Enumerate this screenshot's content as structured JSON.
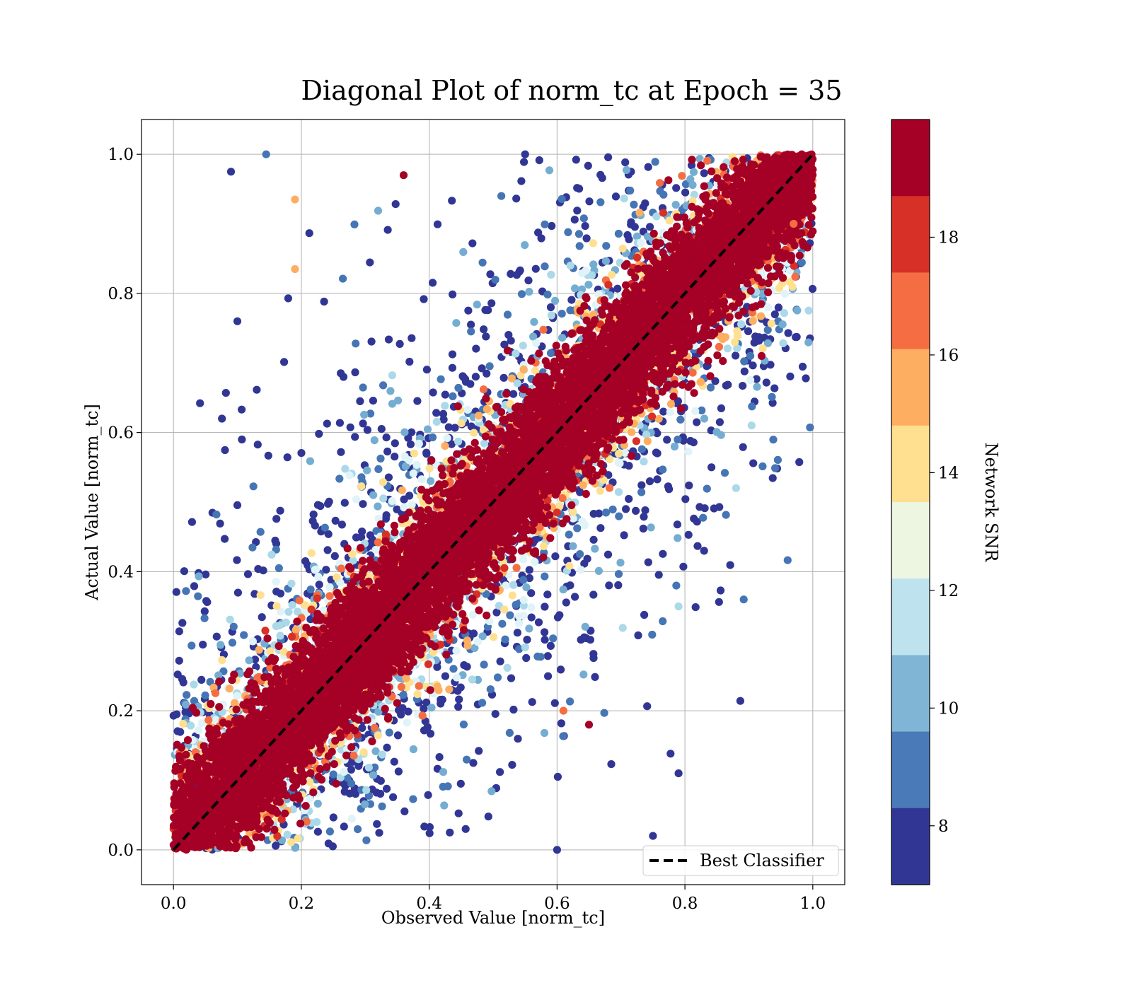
{
  "chart_data": {
    "type": "scatter",
    "title": "Diagonal Plot of norm_tc at Epoch = 35",
    "xlabel": "Observed Value [norm_tc]",
    "ylabel": "Actual Value [norm_tc]",
    "xlim": [
      -0.05,
      1.05
    ],
    "ylim": [
      -0.05,
      1.05
    ],
    "xticks": [
      "0.0",
      "0.2",
      "0.4",
      "0.6",
      "0.8",
      "1.0"
    ],
    "yticks": [
      "0.0",
      "0.2",
      "0.4",
      "0.6",
      "0.8",
      "1.0"
    ],
    "grid": true,
    "legend": {
      "placement": "lower-right",
      "entries": [
        {
          "label": "Best Classifier",
          "style": "dashed",
          "color": "#000000"
        }
      ]
    },
    "reference_line": {
      "label": "Best Classifier",
      "x": [
        0.0,
        1.0
      ],
      "y": [
        0.0,
        1.0
      ],
      "style": "dashed",
      "color": "#000000"
    },
    "colorbar": {
      "label": "Network SNR",
      "range": [
        7,
        20
      ],
      "ticks": [
        "8",
        "10",
        "12",
        "14",
        "16",
        "18"
      ],
      "tick_values": [
        8,
        10,
        12,
        14,
        16,
        18
      ],
      "colors": [
        "#313695",
        "#4575b4",
        "#74add1",
        "#abd9e9",
        "#e0f3f8",
        "#fee090",
        "#fdae61",
        "#f46d43",
        "#d73027",
        "#a50026"
      ],
      "bands_top_to_bottom": [
        "#a50026",
        "#d73027",
        "#f46d43",
        "#fdae61",
        "#fee090",
        "#edf6e0",
        "#bfe3ee",
        "#80b5d6",
        "#4a7ab8",
        "#313695"
      ]
    },
    "series": [
      {
        "colored_by": "Network SNR",
        "description_of_points": [
          {
            "x": 0.09,
            "y": 0.975,
            "snr": 8
          },
          {
            "x": 0.145,
            "y": 1.0,
            "snr": 9
          },
          {
            "x": 0.1,
            "y": 0.76,
            "snr": 8
          },
          {
            "x": 0.107,
            "y": 0.59,
            "snr": 8
          },
          {
            "x": 0.19,
            "y": 0.935,
            "snr": 15
          },
          {
            "x": 0.19,
            "y": 0.835,
            "snr": 16
          },
          {
            "x": 0.36,
            "y": 0.97,
            "snr": 19
          },
          {
            "x": 0.55,
            "y": 1.0,
            "snr": 8
          },
          {
            "x": 0.892,
            "y": 0.36,
            "snr": 9
          },
          {
            "x": 0.88,
            "y": 0.52,
            "snr": 11
          },
          {
            "x": 0.79,
            "y": 0.35,
            "snr": 11
          },
          {
            "x": 0.79,
            "y": 0.11,
            "snr": 8
          },
          {
            "x": 0.83,
            "y": 0.43,
            "snr": 8
          },
          {
            "x": 0.75,
            "y": 0.02,
            "snr": 8
          },
          {
            "x": 0.65,
            "y": 0.18,
            "snr": 19
          },
          {
            "x": 0.61,
            "y": 0.2,
            "snr": 17
          },
          {
            "x": 0.6,
            "y": 0.0,
            "snr": 8
          },
          {
            "x": 0.97,
            "y": 0.9,
            "snr": 17
          },
          {
            "x": 0.93,
            "y": 0.78,
            "snr": 13
          },
          {
            "x": 0.92,
            "y": 0.71,
            "snr": 19
          }
        ]
      }
    ]
  }
}
